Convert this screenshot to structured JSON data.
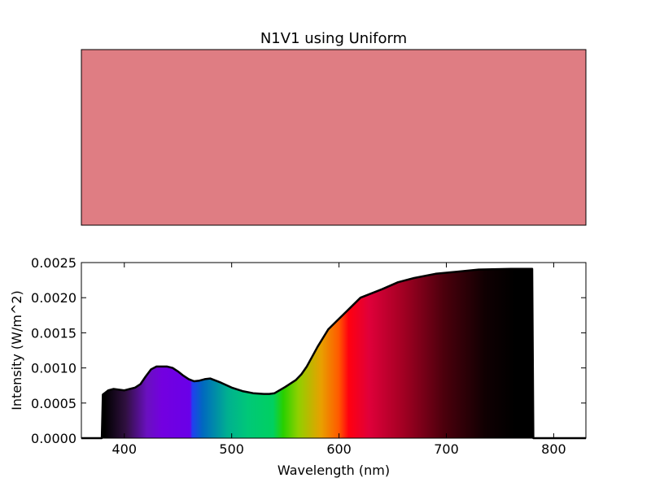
{
  "chart_data": [
    {
      "type": "color-swatch",
      "title": "N1V1 using Uniform",
      "swatch_color": "#df7d83"
    },
    {
      "type": "area",
      "xlabel": "Wavelength (nm)",
      "ylabel": "Intensity (W/m^2)",
      "xlim": [
        360,
        830
      ],
      "ylim": [
        0,
        0.0025
      ],
      "x_ticks": [
        400,
        500,
        600,
        700,
        800
      ],
      "y_ticks": [
        0.0,
        0.0005,
        0.001,
        0.0015,
        0.002,
        0.0025
      ],
      "y_tick_labels": [
        "0.0000",
        "0.0005",
        "0.0010",
        "0.0015",
        "0.0020",
        "0.0025"
      ],
      "fill": "visible-spectrum gradient",
      "grid": false,
      "series": [
        {
          "x": [
            360,
            379,
            380,
            385,
            390,
            400,
            405,
            410,
            415,
            420,
            425,
            430,
            440,
            445,
            450,
            455,
            460,
            465,
            470,
            475,
            480,
            490,
            500,
            510,
            520,
            530,
            535,
            540,
            550,
            560,
            565,
            570,
            580,
            590,
            600,
            610,
            620,
            640,
            655,
            670,
            690,
            710,
            730,
            760,
            780,
            781,
            830
          ],
          "y": [
            0,
            0,
            0.00062,
            0.00068,
            0.0007,
            0.00068,
            0.0007,
            0.00072,
            0.00077,
            0.00088,
            0.00098,
            0.00102,
            0.00102,
            0.001,
            0.00095,
            0.00089,
            0.00084,
            0.00081,
            0.00082,
            0.00084,
            0.00085,
            0.00079,
            0.00072,
            0.00067,
            0.00064,
            0.00063,
            0.00063,
            0.00064,
            0.00073,
            0.00083,
            0.00091,
            0.00102,
            0.0013,
            0.00155,
            0.0017,
            0.00185,
            0.002,
            0.00212,
            0.00222,
            0.00228,
            0.00234,
            0.00237,
            0.0024,
            0.00241,
            0.00241,
            0,
            0
          ]
        }
      ]
    }
  ]
}
